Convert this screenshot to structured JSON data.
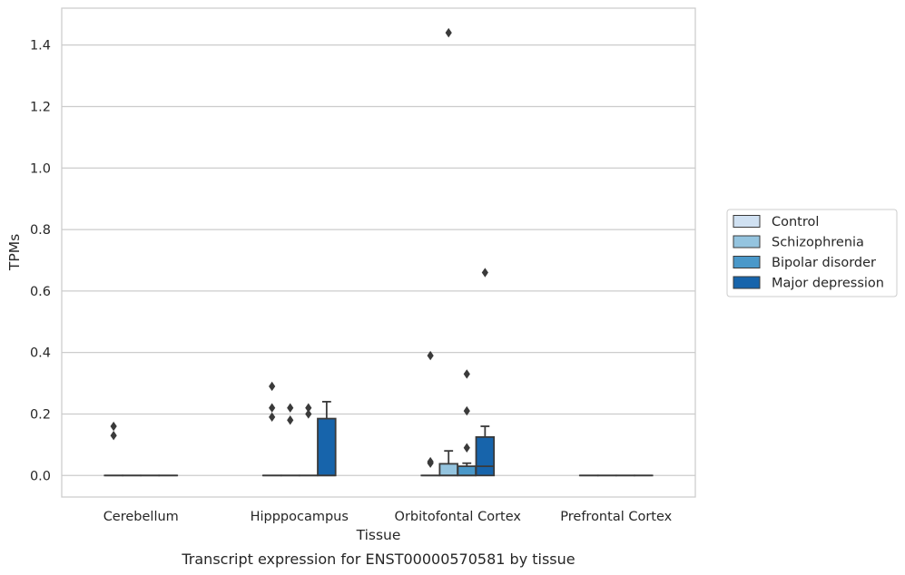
{
  "chart_data": {
    "type": "box",
    "xlabel": "Tissue",
    "ylabel": "TPMs",
    "caption": "Transcript expression for ENST00000570581 by tissue",
    "ylim": [
      -0.07,
      1.52
    ],
    "yticks": [
      0.0,
      0.2,
      0.4,
      0.6,
      0.8,
      1.0,
      1.2,
      1.4
    ],
    "ytick_labels": [
      "0.0",
      "0.2",
      "0.4",
      "0.6",
      "0.8",
      "1.0",
      "1.2",
      "1.4"
    ],
    "grid": "horizontal",
    "legend_position": "right",
    "categories": [
      "Cerebellum",
      "Hipppocampus",
      "Orbitofontal Cortex",
      "Prefrontal Cortex"
    ],
    "series": [
      {
        "name": "Control",
        "color": "#d0e1f2",
        "boxes": [
          {
            "category": "Cerebellum",
            "q1": 0,
            "median": 0,
            "q3": 0,
            "whislo": 0,
            "whishi": 0,
            "fliers": [
              0.13,
              0.16
            ]
          },
          {
            "category": "Hipppocampus",
            "q1": 0,
            "median": 0,
            "q3": 0,
            "whislo": 0,
            "whishi": 0,
            "fliers": [
              0.19,
              0.22,
              0.29
            ]
          },
          {
            "category": "Orbitofontal Cortex",
            "q1": 0,
            "median": 0,
            "q3": 0,
            "whislo": 0,
            "whishi": 0,
            "fliers": [
              0.04,
              0.045,
              0.39
            ]
          },
          {
            "category": "Prefrontal Cortex",
            "q1": 0,
            "median": 0,
            "q3": 0,
            "whislo": 0,
            "whishi": 0,
            "fliers": []
          }
        ]
      },
      {
        "name": "Schizophrenia",
        "color": "#94c4df",
        "boxes": [
          {
            "category": "Cerebellum",
            "q1": 0,
            "median": 0,
            "q3": 0,
            "whislo": 0,
            "whishi": 0,
            "fliers": []
          },
          {
            "category": "Hipppocampus",
            "q1": 0,
            "median": 0,
            "q3": 0,
            "whislo": 0,
            "whishi": 0,
            "fliers": [
              0.18,
              0.22
            ]
          },
          {
            "category": "Orbitofontal Cortex",
            "q1": 0,
            "median": 0,
            "q3": 0.038,
            "whislo": 0,
            "whishi": 0.08,
            "fliers": [
              1.44
            ]
          },
          {
            "category": "Prefrontal Cortex",
            "q1": 0,
            "median": 0,
            "q3": 0,
            "whislo": 0,
            "whishi": 0,
            "fliers": []
          }
        ]
      },
      {
        "name": "Bipolar disorder",
        "color": "#4a98c9",
        "boxes": [
          {
            "category": "Cerebellum",
            "q1": 0,
            "median": 0,
            "q3": 0,
            "whislo": 0,
            "whishi": 0,
            "fliers": []
          },
          {
            "category": "Hipppocampus",
            "q1": 0,
            "median": 0,
            "q3": 0,
            "whislo": 0,
            "whishi": 0,
            "fliers": [
              0.2,
              0.22
            ]
          },
          {
            "category": "Orbitofontal Cortex",
            "q1": 0,
            "median": 0,
            "q3": 0.03,
            "whislo": 0,
            "whishi": 0.04,
            "fliers": [
              0.09,
              0.21,
              0.33
            ]
          },
          {
            "category": "Prefrontal Cortex",
            "q1": 0,
            "median": 0,
            "q3": 0,
            "whislo": 0,
            "whishi": 0,
            "fliers": []
          }
        ]
      },
      {
        "name": "Major depression",
        "color": "#1764ab",
        "boxes": [
          {
            "category": "Cerebellum",
            "q1": 0,
            "median": 0,
            "q3": 0,
            "whislo": 0,
            "whishi": 0,
            "fliers": []
          },
          {
            "category": "Hipppocampus",
            "q1": 0,
            "median": 0,
            "q3": 0.185,
            "whislo": 0,
            "whishi": 0.24,
            "fliers": []
          },
          {
            "category": "Orbitofontal Cortex",
            "q1": 0,
            "median": 0.03,
            "q3": 0.125,
            "whislo": 0,
            "whishi": 0.16,
            "fliers": [
              0.66
            ]
          },
          {
            "category": "Prefrontal Cortex",
            "q1": 0,
            "median": 0,
            "q3": 0,
            "whislo": 0,
            "whishi": 0,
            "fliers": []
          }
        ]
      }
    ]
  }
}
